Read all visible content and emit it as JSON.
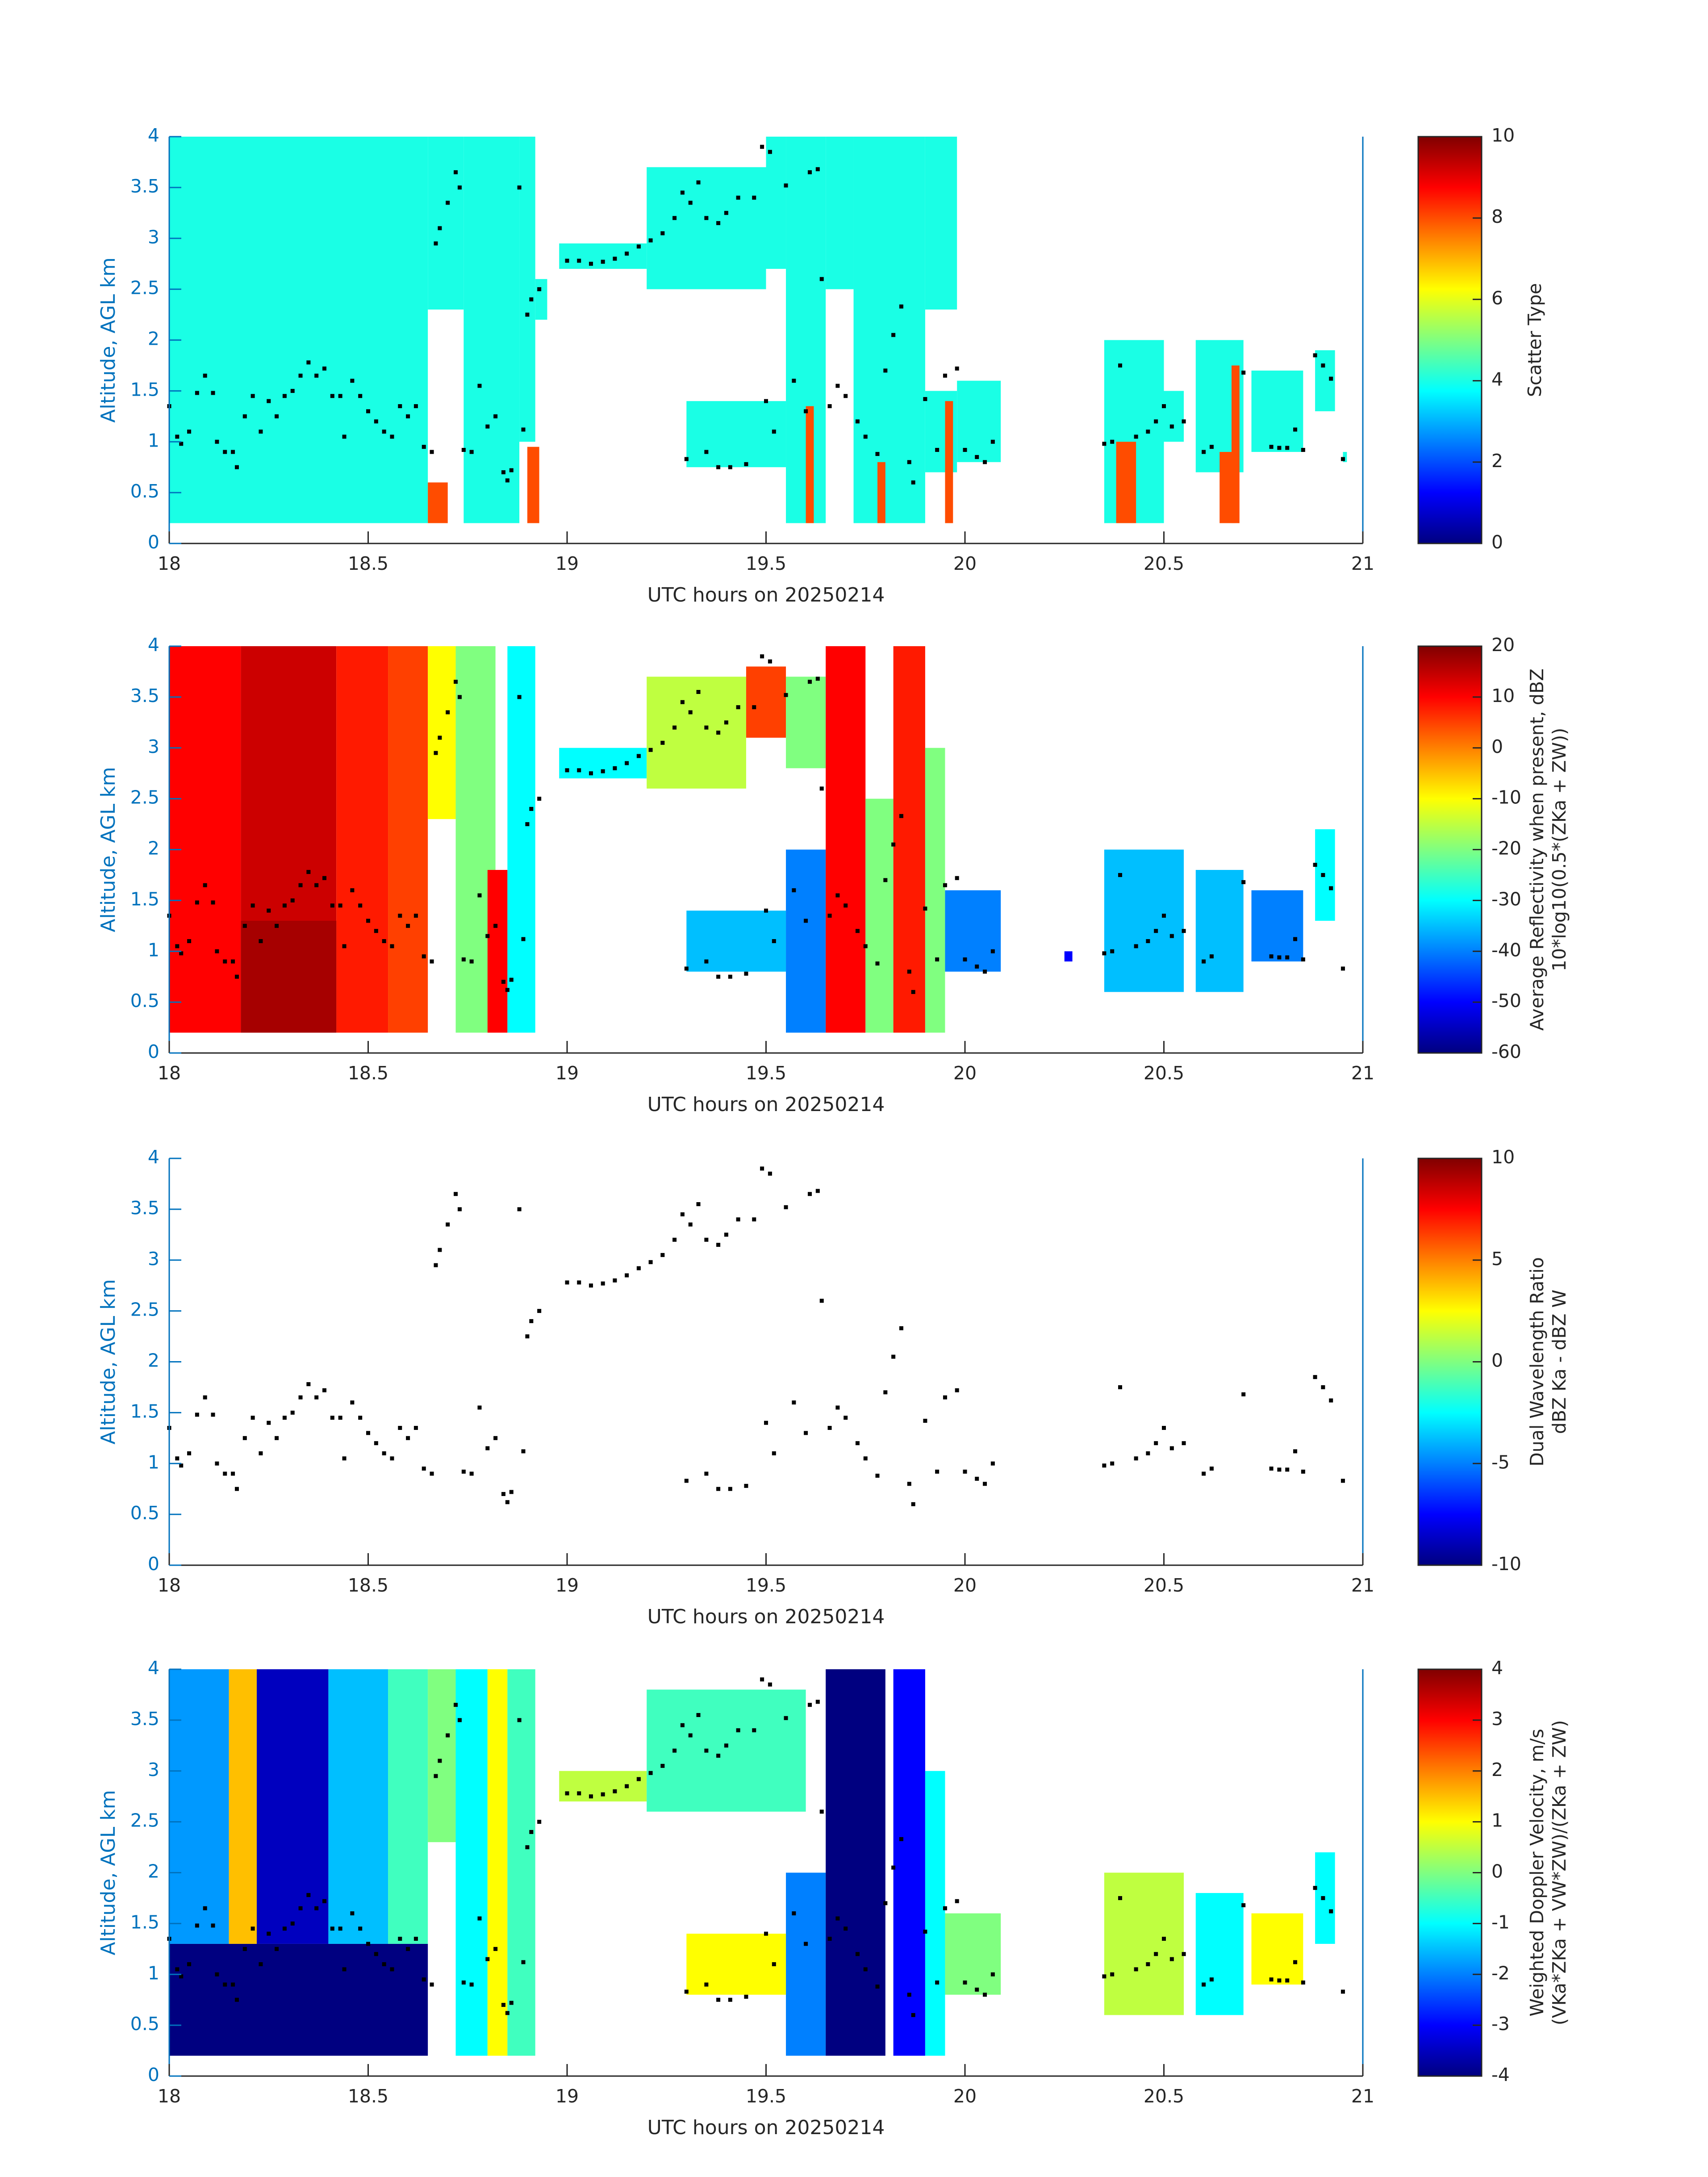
{
  "chart_data": [
    {
      "type": "heatmap",
      "xlabel": "UTC hours on 20250214",
      "ylabel": "Altitude, AGL km",
      "xlim": [
        18,
        21
      ],
      "xticks": [
        18,
        18.5,
        19,
        19.5,
        20,
        20.5,
        21
      ],
      "ylim": [
        0,
        4
      ],
      "yticks": [
        0,
        0.5,
        1,
        1.5,
        2,
        2.5,
        3,
        3.5,
        4
      ],
      "clabel": [
        "Scatter Type"
      ],
      "clim": [
        0,
        10
      ],
      "cticks": [
        0,
        2,
        4,
        6,
        8,
        10
      ],
      "colormap": "jet",
      "cells": [
        [
          18.0,
          18.65,
          0.2,
          4.0,
          4
        ],
        [
          18.65,
          18.74,
          2.3,
          4.0,
          4
        ],
        [
          18.65,
          18.7,
          0.2,
          0.6,
          8
        ],
        [
          18.74,
          18.88,
          0.2,
          4.0,
          4
        ],
        [
          18.88,
          18.92,
          1.0,
          4.0,
          4
        ],
        [
          18.9,
          18.93,
          0.2,
          0.95,
          8
        ],
        [
          18.92,
          18.95,
          2.2,
          2.6,
          4
        ],
        [
          18.98,
          19.2,
          2.7,
          2.95,
          4
        ],
        [
          19.2,
          19.5,
          2.5,
          3.7,
          4
        ],
        [
          19.5,
          19.55,
          2.7,
          4.0,
          4
        ],
        [
          19.55,
          19.65,
          0.2,
          4.0,
          4
        ],
        [
          19.65,
          19.72,
          2.5,
          4.0,
          4
        ],
        [
          19.72,
          19.9,
          0.2,
          4.0,
          4
        ],
        [
          19.9,
          19.98,
          2.3,
          4.0,
          4
        ],
        [
          19.9,
          19.98,
          0.7,
          1.5,
          4
        ],
        [
          19.6,
          19.62,
          0.2,
          1.35,
          8
        ],
        [
          19.78,
          19.8,
          0.2,
          0.8,
          8
        ],
        [
          19.95,
          19.97,
          0.2,
          1.4,
          8
        ],
        [
          19.3,
          19.55,
          0.75,
          1.4,
          4
        ],
        [
          19.98,
          20.09,
          0.8,
          1.6,
          4
        ],
        [
          20.35,
          20.5,
          0.2,
          2.0,
          4
        ],
        [
          20.5,
          20.55,
          1.0,
          1.5,
          4
        ],
        [
          20.38,
          20.43,
          0.2,
          1.0,
          8
        ],
        [
          20.58,
          20.7,
          0.7,
          2.0,
          4
        ],
        [
          20.64,
          20.68,
          0.2,
          0.9,
          8
        ],
        [
          20.67,
          20.69,
          0.2,
          1.75,
          8
        ],
        [
          20.72,
          20.85,
          0.9,
          1.7,
          4
        ],
        [
          20.88,
          20.93,
          1.3,
          1.9,
          4
        ],
        [
          20.95,
          20.96,
          0.8,
          0.9,
          4
        ]
      ]
    },
    {
      "type": "heatmap",
      "xlabel": "UTC hours on 20250214",
      "ylabel": "Altitude, AGL km",
      "xlim": [
        18,
        21
      ],
      "xticks": [
        18,
        18.5,
        19,
        19.5,
        20,
        20.5,
        21
      ],
      "ylim": [
        0,
        4
      ],
      "yticks": [
        0,
        0.5,
        1,
        1.5,
        2,
        2.5,
        3,
        3.5,
        4
      ],
      "clabel": [
        "Average Reflectivity when present, dBZ",
        "10*log10(0.5*(ZKa + ZW))"
      ],
      "clim": [
        -60,
        20
      ],
      "cticks": [
        -60,
        -50,
        -40,
        -30,
        -20,
        -10,
        0,
        10,
        20
      ],
      "colormap": "jet",
      "cells": [
        [
          18.0,
          18.18,
          0.2,
          4.0,
          10
        ],
        [
          18.18,
          18.42,
          0.2,
          4.0,
          14
        ],
        [
          18.42,
          18.55,
          0.2,
          4.0,
          8
        ],
        [
          18.55,
          18.65,
          0.2,
          4.0,
          5
        ],
        [
          18.18,
          18.42,
          0.2,
          1.3,
          17
        ],
        [
          18.65,
          18.72,
          2.3,
          4.0,
          -10
        ],
        [
          18.72,
          18.82,
          0.2,
          4.0,
          -20
        ],
        [
          18.8,
          18.85,
          0.2,
          1.8,
          10
        ],
        [
          18.85,
          18.92,
          0.2,
          4.0,
          -30
        ],
        [
          18.98,
          19.2,
          2.7,
          3.0,
          -30
        ],
        [
          19.2,
          19.45,
          2.6,
          3.7,
          -15
        ],
        [
          19.45,
          19.55,
          3.1,
          3.8,
          5
        ],
        [
          19.55,
          19.65,
          2.8,
          3.7,
          -20
        ],
        [
          19.55,
          19.65,
          0.2,
          2.0,
          -40
        ],
        [
          19.65,
          19.75,
          0.2,
          4.0,
          10
        ],
        [
          19.75,
          19.82,
          0.2,
          2.5,
          -20
        ],
        [
          19.82,
          19.9,
          0.2,
          4.0,
          8
        ],
        [
          19.9,
          19.95,
          0.2,
          3.0,
          -20
        ],
        [
          19.95,
          20.09,
          0.8,
          1.6,
          -40
        ],
        [
          19.3,
          19.55,
          0.8,
          1.4,
          -35
        ],
        [
          20.35,
          20.55,
          0.6,
          2.0,
          -35
        ],
        [
          20.58,
          20.7,
          0.6,
          1.8,
          -35
        ],
        [
          20.72,
          20.85,
          0.9,
          1.6,
          -40
        ],
        [
          20.88,
          20.93,
          1.3,
          2.2,
          -30
        ],
        [
          20.25,
          20.27,
          0.9,
          1.0,
          -50
        ]
      ]
    },
    {
      "type": "heatmap",
      "xlabel": "UTC hours on 20250214",
      "ylabel": "Altitude, AGL km",
      "xlim": [
        18,
        21
      ],
      "xticks": [
        18,
        18.5,
        19,
        19.5,
        20,
        20.5,
        21
      ],
      "ylim": [
        0,
        4
      ],
      "yticks": [
        0,
        0.5,
        1,
        1.5,
        2,
        2.5,
        3,
        3.5,
        4
      ],
      "clabel": [
        "Dual Wavelength Ratio",
        "dBZ Ka - dBZ W"
      ],
      "clim": [
        -10,
        10
      ],
      "cticks": [
        -10,
        -5,
        0,
        5,
        10
      ],
      "colormap": "jet",
      "cells": []
    },
    {
      "type": "heatmap",
      "xlabel": "UTC hours on 20250214",
      "ylabel": "Altitude, AGL km",
      "xlim": [
        18,
        21
      ],
      "xticks": [
        18,
        18.5,
        19,
        19.5,
        20,
        20.5,
        21
      ],
      "ylim": [
        0,
        4
      ],
      "yticks": [
        0,
        0.5,
        1,
        1.5,
        2,
        2.5,
        3,
        3.5,
        4
      ],
      "clabel": [
        "Weighted Doppler Velocity, m/s",
        "(VKa*ZKa + VW*ZW)/(ZKa + ZW)"
      ],
      "clim": [
        -4,
        4
      ],
      "cticks": [
        -4,
        -3,
        -2,
        -1,
        0,
        1,
        2,
        3,
        4
      ],
      "colormap": "jet",
      "cells": [
        [
          18.0,
          18.65,
          0.2,
          1.3,
          -4
        ],
        [
          18.0,
          18.15,
          1.3,
          4.0,
          -1.8
        ],
        [
          18.15,
          18.22,
          1.3,
          4.0,
          1.5
        ],
        [
          18.22,
          18.4,
          1.3,
          4.0,
          -3.5
        ],
        [
          18.4,
          18.55,
          1.3,
          4.0,
          -1.5
        ],
        [
          18.55,
          18.65,
          1.3,
          4.0,
          -0.5
        ],
        [
          18.65,
          18.72,
          2.3,
          4.0,
          0
        ],
        [
          18.72,
          18.8,
          0.2,
          4.0,
          -1
        ],
        [
          18.8,
          18.85,
          0.2,
          4.0,
          1
        ],
        [
          18.85,
          18.92,
          0.2,
          4.0,
          -0.5
        ],
        [
          18.98,
          19.2,
          2.7,
          3.0,
          0.5
        ],
        [
          19.2,
          19.6,
          2.6,
          3.8,
          -0.5
        ],
        [
          19.55,
          19.65,
          0.2,
          2.0,
          -2
        ],
        [
          19.65,
          19.8,
          0.2,
          4.0,
          -4
        ],
        [
          19.82,
          19.9,
          0.2,
          4.0,
          -3
        ],
        [
          19.9,
          19.95,
          0.2,
          3.0,
          -1
        ],
        [
          19.95,
          20.09,
          0.8,
          1.6,
          0
        ],
        [
          19.3,
          19.55,
          0.8,
          1.4,
          1
        ],
        [
          20.35,
          20.55,
          0.6,
          2.0,
          0.5
        ],
        [
          20.58,
          20.7,
          0.6,
          1.8,
          -1
        ],
        [
          20.72,
          20.85,
          0.9,
          1.6,
          1
        ],
        [
          20.88,
          20.93,
          1.3,
          2.2,
          -1
        ]
      ]
    }
  ],
  "overlay_points": {
    "x": [
      18.0,
      18.02,
      18.03,
      18.05,
      18.07,
      18.09,
      18.11,
      18.12,
      18.14,
      18.16,
      18.17,
      18.19,
      18.21,
      18.23,
      18.25,
      18.27,
      18.29,
      18.31,
      18.33,
      18.35,
      18.37,
      18.39,
      18.41,
      18.43,
      18.44,
      18.46,
      18.48,
      18.5,
      18.52,
      18.54,
      18.56,
      18.58,
      18.6,
      18.62,
      18.64,
      18.66,
      18.67,
      18.68,
      18.7,
      18.72,
      18.73,
      18.74,
      18.76,
      18.78,
      18.8,
      18.82,
      18.84,
      18.85,
      18.86,
      18.88,
      18.89,
      18.9,
      18.91,
      18.93,
      19.0,
      19.03,
      19.06,
      19.09,
      19.12,
      19.15,
      19.18,
      19.21,
      19.24,
      19.27,
      19.29,
      19.31,
      19.33,
      19.35,
      19.38,
      19.4,
      19.43,
      19.47,
      19.49,
      19.51,
      19.55,
      19.61,
      19.63,
      19.64,
      19.3,
      19.35,
      19.38,
      19.41,
      19.45,
      19.5,
      19.52,
      19.57,
      19.6,
      19.66,
      19.68,
      19.7,
      19.73,
      19.75,
      19.78,
      19.8,
      19.82,
      19.84,
      19.86,
      19.87,
      19.9,
      19.93,
      19.95,
      19.98,
      20.0,
      20.03,
      20.05,
      20.07,
      20.35,
      20.37,
      20.39,
      20.43,
      20.46,
      20.48,
      20.5,
      20.52,
      20.55,
      20.6,
      20.62,
      20.7,
      20.77,
      20.79,
      20.81,
      20.83,
      20.85,
      20.88,
      20.9,
      20.92,
      20.95
    ],
    "y": [
      1.35,
      1.05,
      0.98,
      1.1,
      1.48,
      1.65,
      1.48,
      1.0,
      0.9,
      0.9,
      0.75,
      1.25,
      1.45,
      1.1,
      1.4,
      1.25,
      1.45,
      1.5,
      1.65,
      1.78,
      1.65,
      1.72,
      1.45,
      1.45,
      1.05,
      1.6,
      1.45,
      1.3,
      1.2,
      1.1,
      1.05,
      1.35,
      1.25,
      1.35,
      0.95,
      0.9,
      2.95,
      3.1,
      3.35,
      3.65,
      3.5,
      0.92,
      0.9,
      1.55,
      1.15,
      1.25,
      0.7,
      0.62,
      0.72,
      3.5,
      1.12,
      2.25,
      2.4,
      2.5,
      2.78,
      2.78,
      2.75,
      2.77,
      2.8,
      2.85,
      2.92,
      2.98,
      3.05,
      3.2,
      3.45,
      3.35,
      3.55,
      3.2,
      3.15,
      3.25,
      3.4,
      3.4,
      3.9,
      3.85,
      3.52,
      3.65,
      3.68,
      2.6,
      0.83,
      0.9,
      0.75,
      0.75,
      0.78,
      1.4,
      1.1,
      1.6,
      1.3,
      1.35,
      1.55,
      1.45,
      1.2,
      1.05,
      0.88,
      1.7,
      2.05,
      2.33,
      0.8,
      0.6,
      1.42,
      0.92,
      1.65,
      1.72,
      0.92,
      0.85,
      0.8,
      1.0,
      0.98,
      1.0,
      1.75,
      1.05,
      1.1,
      1.2,
      1.35,
      1.15,
      1.2,
      0.9,
      0.95,
      1.68,
      0.95,
      0.94,
      0.94,
      1.12,
      0.92,
      1.85,
      1.75,
      1.62,
      0.83
    ]
  }
}
